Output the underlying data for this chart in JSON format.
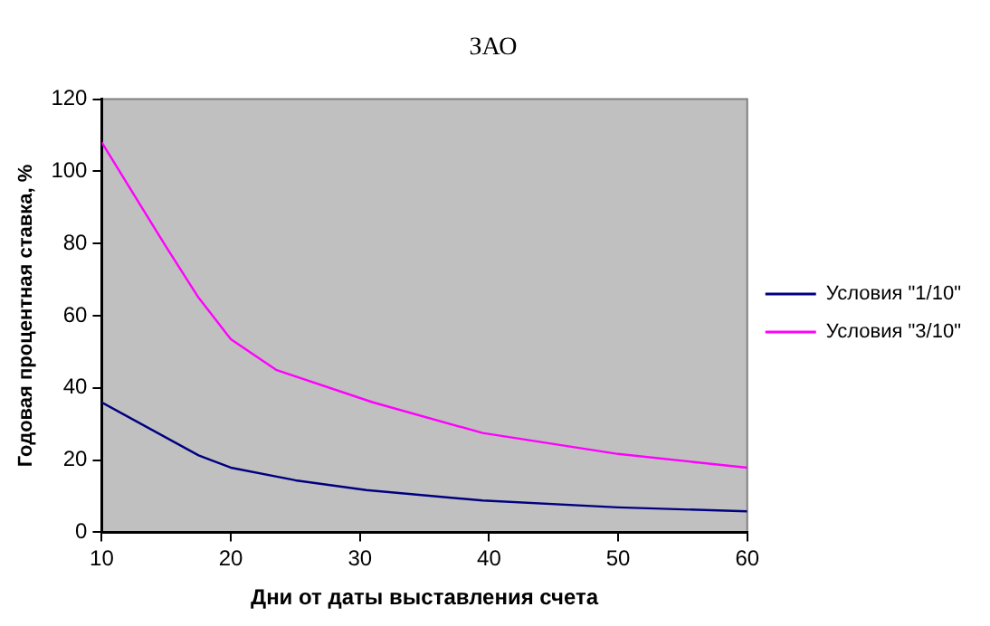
{
  "chart_data": {
    "type": "line",
    "title": "ЗАО",
    "xlabel": "Дни от даты выставления счета",
    "ylabel": "Годовая процентная ставка, %",
    "xlim": [
      10,
      60
    ],
    "xticks": [
      10,
      20,
      30,
      40,
      50,
      60
    ],
    "ylim": [
      0,
      120
    ],
    "yticks": [
      0,
      20,
      40,
      60,
      80,
      100,
      120
    ],
    "grid": false,
    "legend": "right",
    "marker": "none",
    "line_style": "solid",
    "series": [
      {
        "name": "Условия \"1/10\"",
        "color": "#000080",
        "x": [
          10,
          17.5,
          20,
          25,
          30.5,
          39.5,
          50,
          60
        ],
        "values": [
          36,
          21.3,
          17.9,
          14.4,
          11.7,
          8.8,
          6.9,
          5.8
        ]
      },
      {
        "name": "Условия \"3/10\"",
        "color": "#ff00ff",
        "x": [
          10,
          15,
          17.5,
          20,
          23.5,
          31,
          39.5,
          50,
          60
        ],
        "values": [
          108,
          79,
          65,
          53.5,
          45,
          36,
          27.5,
          21.7,
          17.9
        ]
      }
    ]
  }
}
